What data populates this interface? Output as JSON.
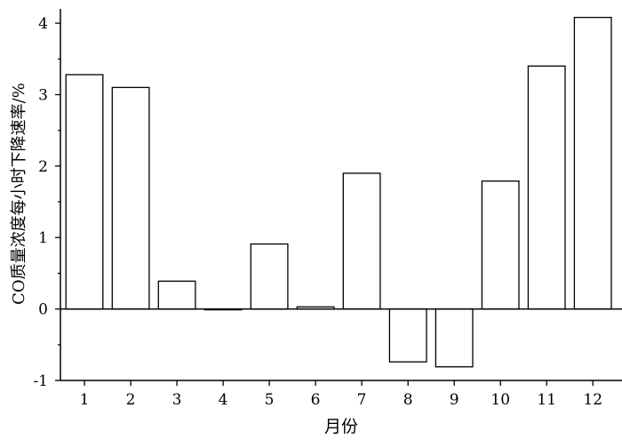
{
  "chart_data": {
    "type": "bar",
    "categories": [
      "1",
      "2",
      "3",
      "4",
      "5",
      "6",
      "7",
      "8",
      "9",
      "10",
      "11",
      "12"
    ],
    "values": [
      3.28,
      3.1,
      0.39,
      -0.01,
      0.91,
      0.03,
      1.9,
      -0.74,
      -0.81,
      1.79,
      3.4,
      4.08
    ],
    "xlabel": "月份",
    "ylabel": "CO质量浓度每小时下降速率/%",
    "ylim": [
      -1,
      4.2
    ],
    "yticks": [
      "-1",
      "0",
      "1",
      "2",
      "3",
      "4"
    ],
    "grid": false,
    "legend": "none",
    "colors": {
      "bar_fill": "#ffffff",
      "bar_stroke": "#000000",
      "axis": "#000000"
    }
  }
}
